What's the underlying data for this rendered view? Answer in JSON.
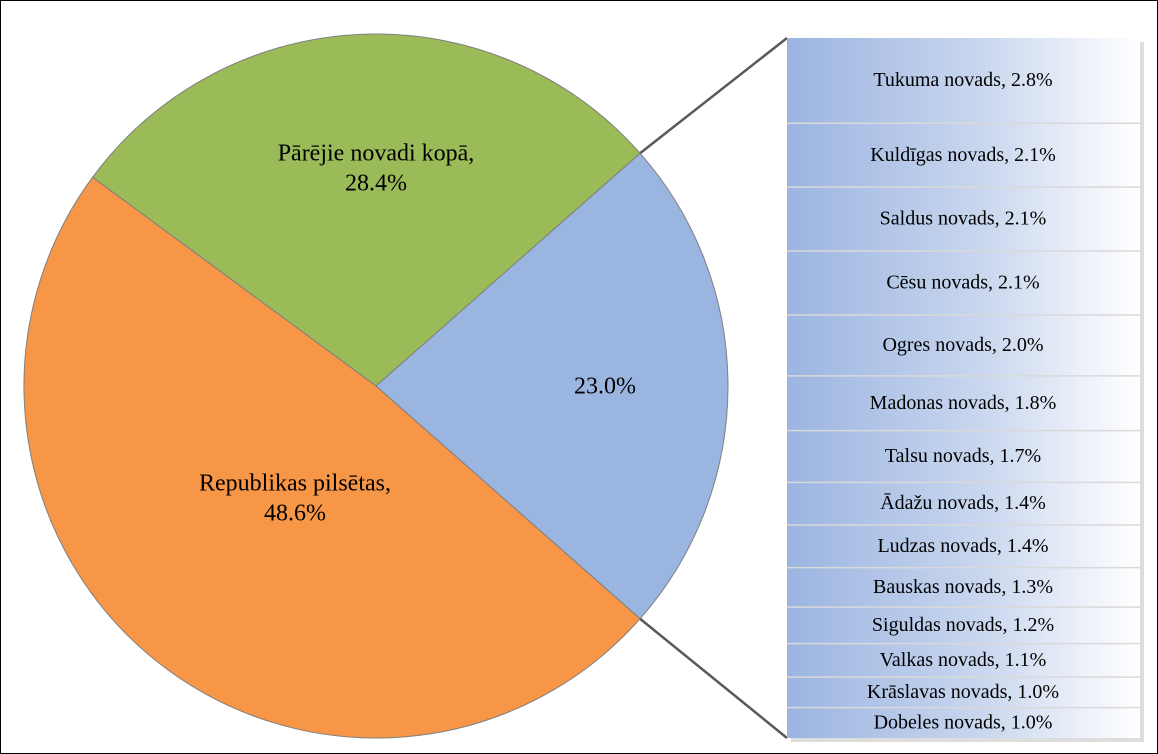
{
  "chart_data": [
    {
      "type": "pie",
      "values": [
        23.0,
        28.4,
        48.6
      ],
      "colors": [
        "#9bb5e1",
        "#9bbb59",
        "#f79646"
      ],
      "value_labels": [
        [
          "23.0%"
        ],
        [
          "Pārējie novadi kopā,",
          "28.4%"
        ],
        [
          "Republikas pilsētas,",
          "48.6%"
        ]
      ]
    },
    {
      "type": "stacked-bar",
      "values": [
        2.8,
        2.1,
        2.1,
        2.1,
        2.0,
        1.8,
        1.7,
        1.4,
        1.4,
        1.3,
        1.2,
        1.1,
        1.0,
        1.0
      ],
      "color": "#9bb5e1",
      "value_labels": [
        "Tukuma novads, 2.8%",
        "Kuldīgas novads, 2.1%",
        "Saldus novads, 2.1%",
        "Cēsu novads, 2.1%",
        "Ogres novads, 2.0%",
        "Madonas novads, 1.8%",
        "Talsu novads, 1.7%",
        "Ādažu novads, 1.4%",
        "Ludzas novads, 1.4%",
        "Bauskas novads, 1.3%",
        "Siguldas novads, 1.2%",
        "Valkas novads, 1.1%",
        "Krāslavas novads, 1.0%",
        "Dobeles novads, 1.0%"
      ]
    }
  ]
}
